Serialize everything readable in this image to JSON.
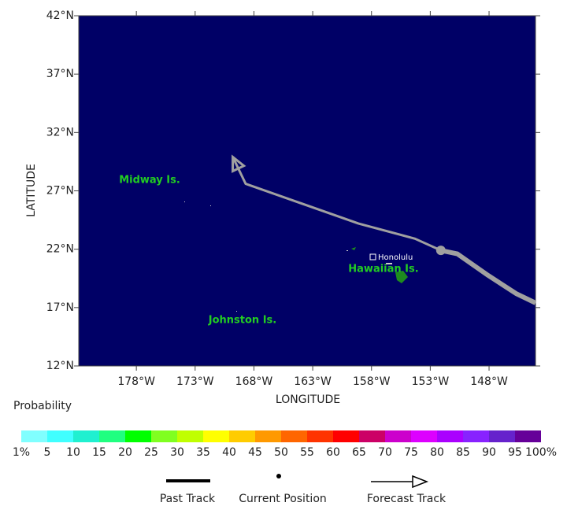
{
  "map": {
    "xlabel": "LONGITUDE",
    "ylabel": "LATITUDE",
    "xlim": [
      -182.9,
      -144.05
    ],
    "ylim": [
      12,
      42
    ],
    "xticks": [
      {
        "value": -178,
        "label": "178°W"
      },
      {
        "value": -173,
        "label": "173°W"
      },
      {
        "value": -168,
        "label": "168°W"
      },
      {
        "value": -163,
        "label": "163°W"
      },
      {
        "value": -158,
        "label": "158°W"
      },
      {
        "value": -153,
        "label": "153°W"
      },
      {
        "value": -148,
        "label": "148°W"
      }
    ],
    "yticks": [
      {
        "value": 12,
        "label": "12°N"
      },
      {
        "value": 17,
        "label": "17°N"
      },
      {
        "value": 22,
        "label": "22°N"
      },
      {
        "value": 27,
        "label": "27°N"
      },
      {
        "value": 32,
        "label": "32°N"
      },
      {
        "value": 37,
        "label": "37°N"
      },
      {
        "value": 42,
        "label": "42°N"
      }
    ],
    "background": "#000066",
    "track_color": "#a0a0a0",
    "past_track": {
      "lon": [
        -144.05,
        -145.7,
        -148.07,
        -150.7,
        -152.1
      ],
      "lat": [
        17.4,
        18.2,
        19.75,
        21.6,
        21.9
      ]
    },
    "current_position": {
      "lon": -152.1,
      "lat": 21.9
    },
    "forecast_track": {
      "lon": [
        -152.1,
        -154.3,
        -159.1,
        -168.7,
        -169.8
      ],
      "lat": [
        21.9,
        22.9,
        24.2,
        27.6,
        29.9
      ]
    },
    "places": [
      "Midway Is.",
      "Johnston Is.",
      "Hawaiian Is.",
      "Honolulu"
    ]
  },
  "probability": {
    "title": "Probability",
    "labels": [
      "1%",
      "5",
      "10",
      "15",
      "20",
      "25",
      "30",
      "35",
      "40",
      "45",
      "50",
      "55",
      "60",
      "65",
      "70",
      "75",
      "80",
      "85",
      "90",
      "95",
      "100%"
    ],
    "colors": [
      "#80ffff",
      "#40ffff",
      "#20f0d0",
      "#20ff80",
      "#00ff00",
      "#80ff20",
      "#c0ff00",
      "#ffff00",
      "#ffcc00",
      "#ff9900",
      "#ff6600",
      "#ff3300",
      "#ff0000",
      "#cc0066",
      "#cc00cc",
      "#dd00ff",
      "#aa00ff",
      "#8822ff",
      "#6622cc",
      "#660099"
    ]
  },
  "legend": [
    "Past Track",
    "Current Position",
    "Forecast Track"
  ]
}
